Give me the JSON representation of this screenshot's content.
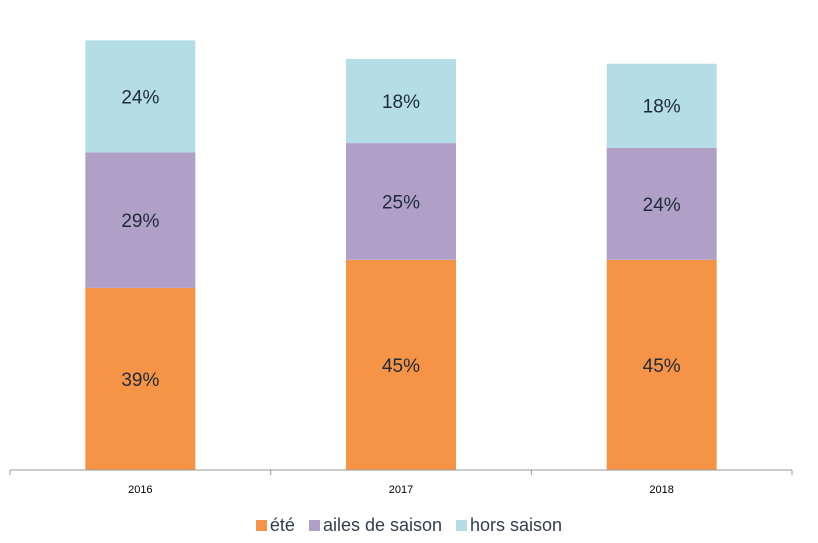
{
  "chart_data": {
    "type": "bar",
    "stacked": true,
    "categories": [
      "2016",
      "2017",
      "2018"
    ],
    "series": [
      {
        "name": "été",
        "values": [
          39,
          45,
          45
        ],
        "labels": [
          "39%",
          "45%",
          "45%"
        ],
        "color": "#f59446"
      },
      {
        "name": "ailes de saison",
        "values": [
          29,
          25,
          24
        ],
        "labels": [
          "29%",
          "25%",
          "24%"
        ],
        "color": "#b0a0c8"
      },
      {
        "name": "hors saison",
        "values": [
          24,
          18,
          18
        ],
        "labels": [
          "24%",
          "18%",
          "18%"
        ],
        "color": "#b4dde6"
      }
    ],
    "xlabel": "",
    "ylabel": "",
    "ylim": [
      0,
      100
    ],
    "legend_position": "bottom",
    "grid": false
  }
}
